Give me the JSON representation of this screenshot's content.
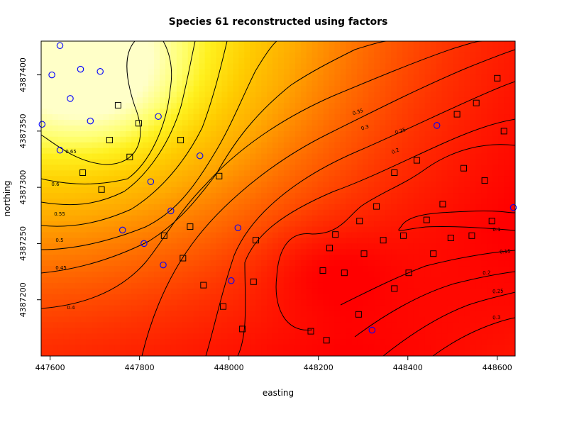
{
  "chart_data": {
    "type": "heatmap",
    "title": "Species 61 reconstructed using factors",
    "xlabel": "easting",
    "ylabel": "northing",
    "xlim": [
      447580,
      448640
    ],
    "ylim": [
      4387150,
      4387430
    ],
    "x_ticks": [
      447600,
      447800,
      448000,
      448200,
      448400,
      448600
    ],
    "y_ticks": [
      4387200,
      4387250,
      4387300,
      4387350,
      4387400
    ],
    "x_tick_labels": [
      "447600",
      "447800",
      "448000",
      "448200",
      "448400",
      "448600"
    ],
    "y_tick_labels": [
      "4387200",
      "4387250",
      "4387300",
      "4387350",
      "4387400"
    ],
    "grid": false,
    "legend": "none",
    "colormap": "heat (red = low, pale yellow = high)",
    "colors": {
      "heat_low": "#ff0000",
      "heat_mid": "#ffa500",
      "heat_high": "#ffff80",
      "heat_top": "#ffffd8",
      "contour": "#000000",
      "circle_marker": "#0000ff",
      "square_marker": "#000000"
    },
    "contour_levels": [
      {
        "label": "0.65",
        "value": 0.65
      },
      {
        "label": "0.6",
        "value": 0.6
      },
      {
        "label": "0.55",
        "value": 0.55
      },
      {
        "label": "0.5",
        "value": 0.5
      },
      {
        "label": "0.45",
        "value": 0.45
      },
      {
        "label": "0.4",
        "value": 0.4
      },
      {
        "label": "0.35",
        "value": 0.35
      },
      {
        "label": "0.3",
        "value": 0.3
      },
      {
        "label": "0.25",
        "value": 0.25
      },
      {
        "label": "0.2",
        "value": 0.2
      },
      {
        "label": "0.15",
        "value": 0.15
      },
      {
        "label": "0.1",
        "value": 0.1
      },
      {
        "label": "0.1",
        "value": 0.1
      },
      {
        "label": "0.15",
        "value": 0.15
      },
      {
        "label": "0.2",
        "value": 0.2
      },
      {
        "label": "0.25",
        "value": 0.25
      },
      {
        "label": "0.3",
        "value": 0.3
      }
    ],
    "series": [
      {
        "marker": "circle",
        "points": [
          [
            447622,
            4387426
          ],
          [
            447668,
            4387405
          ],
          [
            447604,
            4387400
          ],
          [
            447712,
            4387403
          ],
          [
            447645,
            4387379
          ],
          [
            447690,
            4387359
          ],
          [
            447842,
            4387363
          ],
          [
            447582,
            4387356
          ],
          [
            447622,
            4387333
          ],
          [
            447935,
            4387328
          ],
          [
            447825,
            4387305
          ],
          [
            447870,
            4387279
          ],
          [
            447762,
            4387262
          ],
          [
            447810,
            4387250
          ],
          [
            447853,
            4387231
          ],
          [
            448020,
            4387264
          ],
          [
            448005,
            4387217
          ],
          [
            448465,
            4387355
          ],
          [
            448636,
            4387282
          ],
          [
            448320,
            4387173
          ]
        ]
      },
      {
        "marker": "square",
        "points": [
          [
            447752,
            4387373
          ],
          [
            447798,
            4387357
          ],
          [
            447733,
            4387342
          ],
          [
            447892,
            4387342
          ],
          [
            447778,
            4387327
          ],
          [
            447673,
            4387313
          ],
          [
            447715,
            4387298
          ],
          [
            447978,
            4387310
          ],
          [
            447913,
            4387265
          ],
          [
            447855,
            4387257
          ],
          [
            448370,
            4387313
          ],
          [
            448420,
            4387324
          ],
          [
            448330,
            4387283
          ],
          [
            448292,
            4387270
          ],
          [
            448238,
            4387258
          ],
          [
            448225,
            4387246
          ],
          [
            448060,
            4387253
          ],
          [
            448345,
            4387253
          ],
          [
            448390,
            4387257
          ],
          [
            448442,
            4387271
          ],
          [
            448478,
            4387285
          ],
          [
            448525,
            4387317
          ],
          [
            448510,
            4387365
          ],
          [
            448553,
            4387375
          ],
          [
            448572,
            4387306
          ],
          [
            448600,
            4387397
          ],
          [
            448615,
            4387350
          ],
          [
            448588,
            4387270
          ],
          [
            448543,
            4387257
          ],
          [
            448496,
            4387255
          ],
          [
            448457,
            4387241
          ],
          [
            448402,
            4387224
          ],
          [
            448302,
            4387241
          ],
          [
            448258,
            4387224
          ],
          [
            448210,
            4387226
          ],
          [
            448055,
            4387216
          ],
          [
            447943,
            4387213
          ],
          [
            447897,
            4387237
          ],
          [
            448370,
            4387210
          ],
          [
            448290,
            4387187
          ],
          [
            448183,
            4387172
          ],
          [
            448030,
            4387174
          ],
          [
            447987,
            4387194
          ],
          [
            448218,
            4387164
          ]
        ]
      }
    ]
  }
}
